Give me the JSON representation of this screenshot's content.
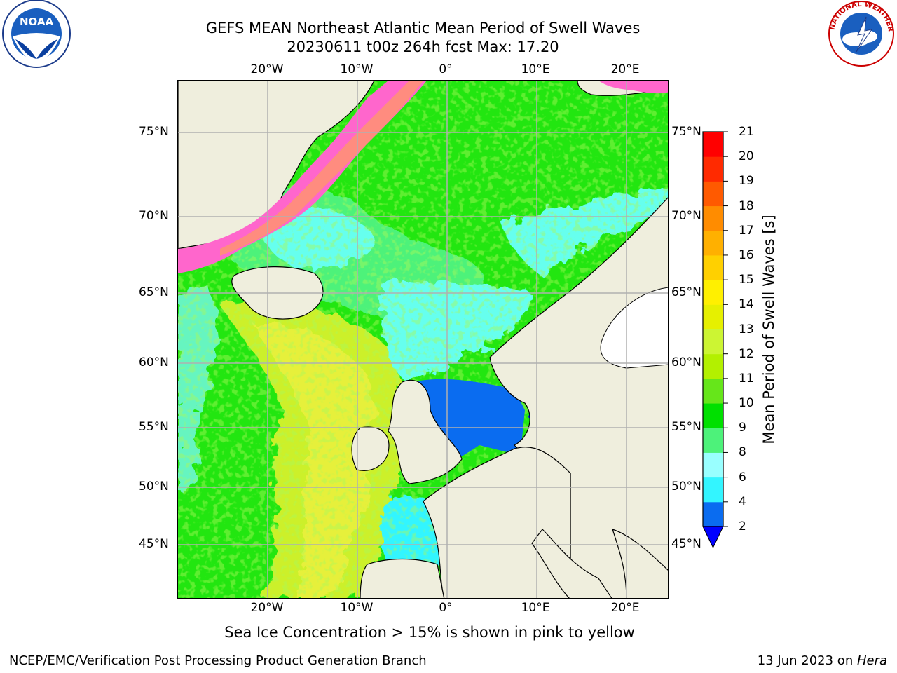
{
  "title_line1": "GEFS MEAN Northeast Atlantic Mean Period of Swell Waves",
  "title_line2": "20230611 t00z 264h fcst   Max: 17.20",
  "note": "Sea Ice Concentration > 15% is shown in pink to yellow",
  "footer_left": "NCEP/EMC/Verification Post Processing Product Generation Branch",
  "footer_right_date": "13 Jun 2023 on ",
  "footer_right_host": "Hera",
  "logos": {
    "left": "noaa-logo",
    "left_text": "NOAA",
    "right": "nws-logo",
    "right_text": "NATIONAL WEATHER SERVICE"
  },
  "lon_ticks": [
    "20°W",
    "10°W",
    "0°",
    "10°E",
    "20°E"
  ],
  "lat_ticks": [
    "75°N",
    "70°N",
    "65°N",
    "60°N",
    "55°N",
    "50°N",
    "45°N"
  ],
  "colorbar": {
    "label": "Mean Period of Swell Waves [s]",
    "ticks": [
      "2",
      "4",
      "6",
      "8",
      "9",
      "10",
      "11",
      "12",
      "13",
      "14",
      "15",
      "16",
      "17",
      "18",
      "19",
      "20",
      "21"
    ],
    "colors": [
      "#0a6cf0",
      "#00e0ff",
      "#33f5ff",
      "#99ffff",
      "#4df27a",
      "#00e000",
      "#66e61a",
      "#b3f000",
      "#ccf533",
      "#e6f000",
      "#fff000",
      "#ffd000",
      "#ffb000",
      "#ff8c00",
      "#ff5a00",
      "#ff2a00",
      "#ff0000"
    ],
    "under_color": "#0000ff"
  },
  "colors": {
    "land": "#efeedd",
    "ice": "#ff66cc",
    "grid": "#b0b0b0"
  }
}
